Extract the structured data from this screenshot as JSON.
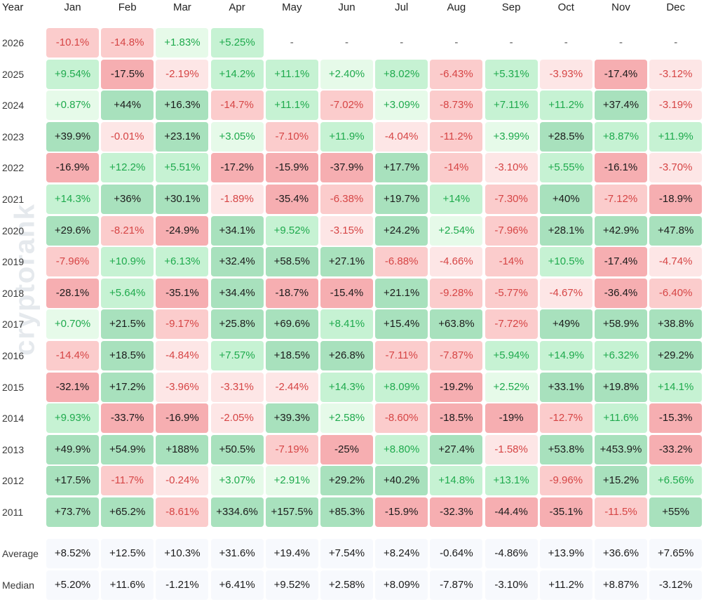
{
  "watermark": "cryptorank",
  "header": {
    "year_label": "Year",
    "months": [
      "Jan",
      "Feb",
      "Mar",
      "Apr",
      "May",
      "Jun",
      "Jul",
      "Aug",
      "Sep",
      "Oct",
      "Nov",
      "Dec"
    ]
  },
  "colors": {
    "pos_light": "#e6fae9",
    "pos_mid": "#c6f2d3",
    "pos_strong": "#a8e1bd",
    "neg_light": "#fde6e6",
    "neg_mid": "#fbcccc",
    "neg_strong": "#f6aeb1",
    "pos_text": "#1faa4d",
    "neg_text": "#d64545",
    "dark_text": "#1b1b1b",
    "summary_bg": "#f7f9fd"
  },
  "chart_data": {
    "type": "heatmap",
    "title": "",
    "x_categories": [
      "Jan",
      "Feb",
      "Mar",
      "Apr",
      "May",
      "Jun",
      "Jul",
      "Aug",
      "Sep",
      "Oct",
      "Nov",
      "Dec"
    ],
    "rows": [
      {
        "label": "2026",
        "values": [
          "-10.1%",
          "-14.8%",
          "+1.83%",
          "+5.25%",
          "-",
          "-",
          "-",
          "-",
          "-",
          "-",
          "-",
          "-"
        ]
      },
      {
        "label": "2025",
        "values": [
          "+9.54%",
          "-17.5%",
          "-2.19%",
          "+14.2%",
          "+11.1%",
          "+2.40%",
          "+8.02%",
          "-6.43%",
          "+5.31%",
          "-3.93%",
          "-17.4%",
          "-3.12%"
        ]
      },
      {
        "label": "2024",
        "values": [
          "+0.87%",
          "+44%",
          "+16.3%",
          "-14.7%",
          "+11.1%",
          "-7.02%",
          "+3.09%",
          "-8.73%",
          "+7.11%",
          "+11.2%",
          "+37.4%",
          "-3.19%"
        ]
      },
      {
        "label": "2023",
        "values": [
          "+39.9%",
          "-0.01%",
          "+23.1%",
          "+3.05%",
          "-7.10%",
          "+11.9%",
          "-4.04%",
          "-11.2%",
          "+3.99%",
          "+28.5%",
          "+8.87%",
          "+11.9%"
        ]
      },
      {
        "label": "2022",
        "values": [
          "-16.9%",
          "+12.2%",
          "+5.51%",
          "-17.2%",
          "-15.9%",
          "-37.9%",
          "+17.7%",
          "-14%",
          "-3.10%",
          "+5.55%",
          "-16.1%",
          "-3.70%"
        ]
      },
      {
        "label": "2021",
        "values": [
          "+14.3%",
          "+36%",
          "+30.1%",
          "-1.89%",
          "-35.4%",
          "-6.38%",
          "+19.7%",
          "+14%",
          "-7.30%",
          "+40%",
          "-7.12%",
          "-18.9%"
        ]
      },
      {
        "label": "2020",
        "values": [
          "+29.6%",
          "-8.21%",
          "-24.9%",
          "+34.1%",
          "+9.52%",
          "-3.15%",
          "+24.2%",
          "+2.54%",
          "-7.96%",
          "+28.1%",
          "+42.9%",
          "+47.8%"
        ]
      },
      {
        "label": "2019",
        "values": [
          "-7.96%",
          "+10.9%",
          "+6.13%",
          "+32.4%",
          "+58.5%",
          "+27.1%",
          "-6.88%",
          "-4.66%",
          "-14%",
          "+10.5%",
          "-17.4%",
          "-4.74%"
        ]
      },
      {
        "label": "2018",
        "values": [
          "-28.1%",
          "+5.64%",
          "-35.1%",
          "+34.4%",
          "-18.7%",
          "-15.4%",
          "+21.1%",
          "-9.28%",
          "-5.77%",
          "-4.67%",
          "-36.4%",
          "-6.40%"
        ]
      },
      {
        "label": "2017",
        "values": [
          "+0.70%",
          "+21.5%",
          "-9.17%",
          "+25.8%",
          "+69.6%",
          "+8.41%",
          "+15.4%",
          "+63.8%",
          "-7.72%",
          "+49%",
          "+58.9%",
          "+38.8%"
        ]
      },
      {
        "label": "2016",
        "values": [
          "-14.4%",
          "+18.5%",
          "-4.84%",
          "+7.57%",
          "+18.5%",
          "+26.8%",
          "-7.11%",
          "-7.87%",
          "+5.94%",
          "+14.9%",
          "+6.32%",
          "+29.2%"
        ]
      },
      {
        "label": "2015",
        "values": [
          "-32.1%",
          "+17.2%",
          "-3.96%",
          "-3.31%",
          "-2.44%",
          "+14.3%",
          "+8.09%",
          "-19.2%",
          "+2.52%",
          "+33.1%",
          "+19.8%",
          "+14.1%"
        ]
      },
      {
        "label": "2014",
        "values": [
          "+9.93%",
          "-33.7%",
          "-16.9%",
          "-2.05%",
          "+39.3%",
          "+2.58%",
          "-8.60%",
          "-18.5%",
          "-19%",
          "-12.7%",
          "+11.6%",
          "-15.3%"
        ]
      },
      {
        "label": "2013",
        "values": [
          "+49.9%",
          "+54.9%",
          "+188%",
          "+50.5%",
          "-7.19%",
          "-25%",
          "+8.80%",
          "+27.4%",
          "-1.58%",
          "+53.8%",
          "+453.9%",
          "-33.2%"
        ]
      },
      {
        "label": "2012",
        "values": [
          "+17.5%",
          "-11.7%",
          "-0.24%",
          "+3.07%",
          "+2.91%",
          "+29.2%",
          "+40.2%",
          "+14.8%",
          "+13.1%",
          "-9.96%",
          "+15.2%",
          "+6.56%"
        ]
      },
      {
        "label": "2011",
        "values": [
          "+73.7%",
          "+65.2%",
          "-8.61%",
          "+334.6%",
          "+157.5%",
          "+85.3%",
          "-15.9%",
          "-32.3%",
          "-44.4%",
          "-35.1%",
          "-11.5%",
          "+55%"
        ]
      }
    ],
    "summary": [
      {
        "label": "Average",
        "values": [
          "+8.52%",
          "+12.5%",
          "+10.3%",
          "+31.6%",
          "+19.4%",
          "+7.54%",
          "+8.24%",
          "-0.64%",
          "-4.86%",
          "+13.9%",
          "+36.6%",
          "+7.65%"
        ]
      },
      {
        "label": "Median",
        "values": [
          "+5.20%",
          "+11.6%",
          "-1.21%",
          "+6.41%",
          "+9.52%",
          "+2.58%",
          "+8.09%",
          "-7.87%",
          "-3.10%",
          "+11.2%",
          "+8.87%",
          "-3.12%"
        ]
      }
    ]
  }
}
